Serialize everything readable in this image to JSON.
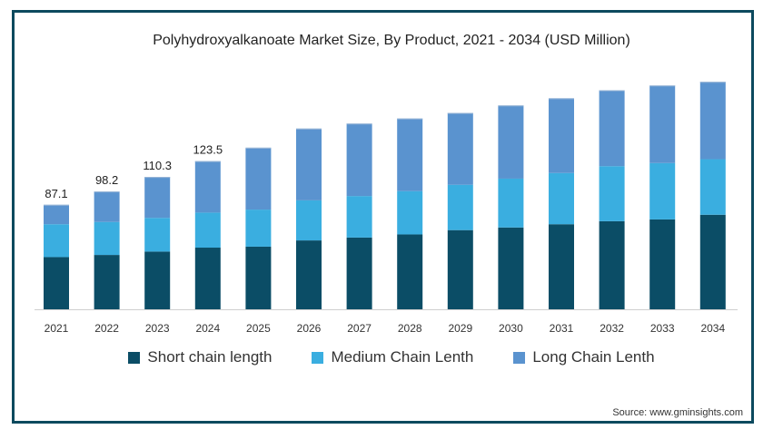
{
  "chart_data": {
    "type": "bar",
    "stacked": true,
    "title": "Polyhydroxyalkanoate Market Size, By Product, 2021 - 2034 (USD Million)",
    "categories": [
      "2021",
      "2022",
      "2023",
      "2024",
      "2025",
      "2026",
      "2027",
      "2028",
      "2029",
      "2030",
      "2031",
      "2032",
      "2033",
      "2034"
    ],
    "series": [
      {
        "name": "Short chain length",
        "color": "#0b4d66",
        "values": [
          43.5,
          45.3,
          48.1,
          51.4,
          52.2,
          57.4,
          59.8,
          62.4,
          66.0,
          68.2,
          70.9,
          73.4,
          74.9,
          78.8
        ]
      },
      {
        "name": "Medium Chain Lenth",
        "color": "#3aaee0",
        "values": [
          27.4,
          27.5,
          28.1,
          29.2,
          30.9,
          33.4,
          34.6,
          36.1,
          37.8,
          40.7,
          42.7,
          45.9,
          47.0,
          46.3
        ]
      },
      {
        "name": "Long Chain Lenth",
        "color": "#5a93cf",
        "values": [
          16.2,
          25.4,
          34.1,
          42.9,
          51.6,
          59.8,
          60.4,
          60.5,
          59.9,
          61.0,
          62.3,
          63.3,
          64.6,
          64.5
        ]
      }
    ],
    "data_labels": [
      "87.1",
      "98.2",
      "110.3",
      "123.5"
    ],
    "ylim": [
      0,
      220
    ],
    "grid": false,
    "legend_position": "bottom"
  },
  "source": "Source: www.gminsights.com"
}
